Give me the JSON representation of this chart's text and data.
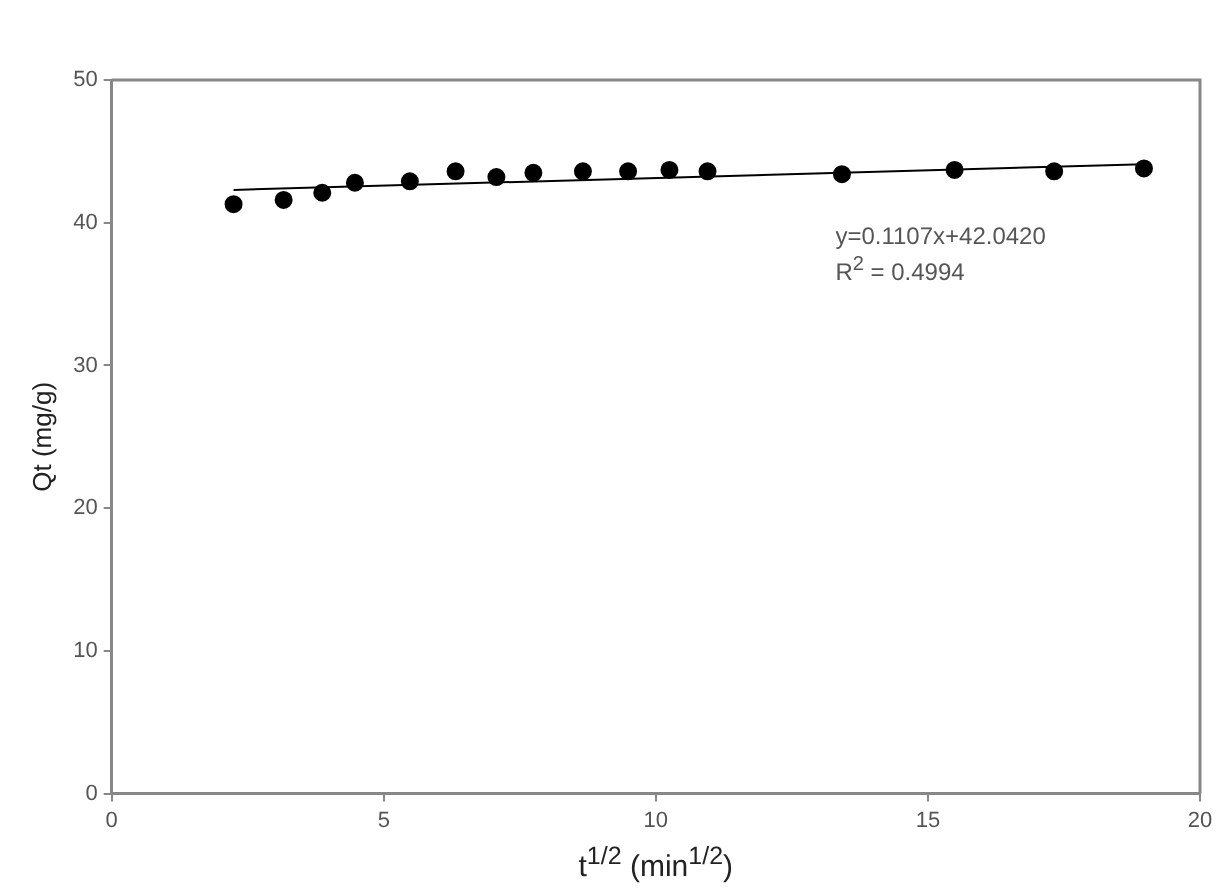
{
  "chart_data": {
    "type": "scatter",
    "xlabel": "t$^{1/2}$ (min$^{1/2}$)",
    "ylabel": "Qt (mg/g)",
    "x": [
      2.24,
      3.16,
      3.87,
      4.47,
      5.48,
      6.32,
      7.07,
      7.75,
      8.66,
      9.49,
      10.25,
      10.95,
      13.42,
      15.49,
      17.32,
      18.97
    ],
    "series": [
      {
        "color": "#000000",
        "marker": "circle",
        "values": [
          41.3,
          41.6,
          42.1,
          42.8,
          42.9,
          43.6,
          43.2,
          43.5,
          43.6,
          43.6,
          43.7,
          43.6,
          43.4,
          43.7,
          43.6,
          43.8
        ]
      },
      {
        "type": "line",
        "marker": "none",
        "color": "#000000",
        "x": [
          2.24,
          18.97
        ],
        "values": [
          42.3,
          44.1
        ]
      }
    ],
    "xlim": [
      0,
      20
    ],
    "xticks": [
      0,
      5,
      10,
      15,
      20
    ],
    "ylim": [
      0,
      50
    ],
    "yticks": [
      0,
      10,
      20,
      30,
      40,
      50
    ],
    "annotations": [
      "y=0.1107x+42.0420",
      "R$^{2}$ = 0.4994"
    ],
    "grid": false,
    "legend": false
  }
}
